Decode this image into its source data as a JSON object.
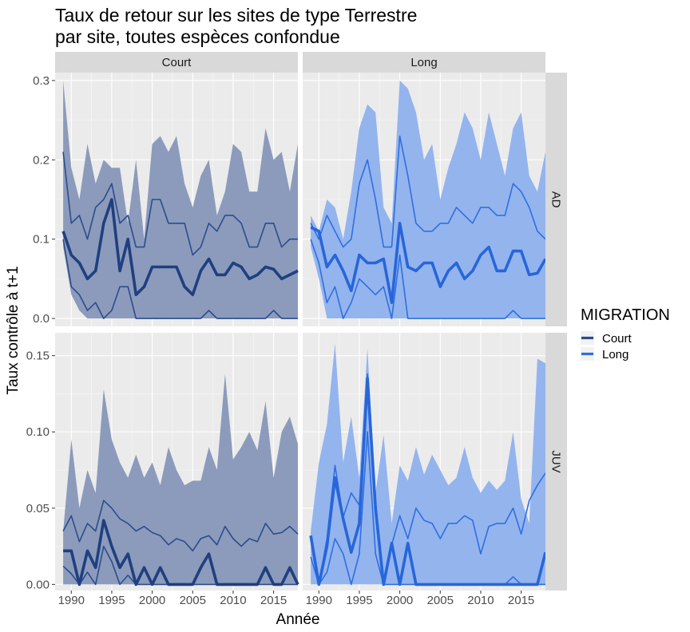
{
  "chart_data": {
    "type": "area",
    "title_line1": "Taux de retour sur les sites de type Terrestre",
    "title_line2": "par site, toutes espèces confondue",
    "xlabel": "Année",
    "ylabel": "Taux contrôle à t+1",
    "x_ticks": [
      1990,
      1995,
      2000,
      2005,
      2010,
      2015
    ],
    "x_range": [
      1988,
      2018
    ],
    "facet_cols": [
      "Court",
      "Long"
    ],
    "facet_rows": [
      "AD",
      "JUV"
    ],
    "rows": {
      "AD": {
        "ylim": [
          -0.01,
          0.31
        ],
        "y_ticks": [
          0.0,
          0.1,
          0.2,
          0.3
        ],
        "y_tick_labels": [
          "0.0",
          "0.1",
          "0.2",
          "0.3"
        ]
      },
      "JUV": {
        "ylim": [
          -0.004,
          0.165
        ],
        "y_ticks": [
          0.0,
          0.05,
          0.1,
          0.15
        ],
        "y_tick_labels": [
          "0.00",
          "0.05",
          "0.10",
          "0.15"
        ]
      }
    },
    "legend": {
      "title": "MIGRATION",
      "entries": [
        {
          "label": "Court",
          "color": "#2B4C8C"
        },
        {
          "label": "Long",
          "color": "#2E6FE0"
        }
      ],
      "position": "right"
    },
    "colors": {
      "Court_ribbon": "#8C9BBB",
      "Long_ribbon": "#94B4EE",
      "Court_line": "#2B4C8C",
      "Long_line": "#2E6FE0",
      "Court_mean": "#1F3F80",
      "Long_mean": "#2766D9",
      "panel_bg": "#EBEBEB",
      "strip_bg": "#D9D9D9"
    },
    "x": [
      1989,
      1990,
      1991,
      1992,
      1993,
      1994,
      1995,
      1996,
      1997,
      1998,
      1999,
      2000,
      2001,
      2002,
      2003,
      2004,
      2005,
      2006,
      2007,
      2008,
      2009,
      2010,
      2011,
      2012,
      2013,
      2014,
      2015,
      2016,
      2017,
      2018
    ],
    "panels": [
      {
        "col": "Court",
        "row": "AD",
        "ymax": [
          0.3,
          0.19,
          0.15,
          0.22,
          0.17,
          0.2,
          0.19,
          0.19,
          0.12,
          0.2,
          0.1,
          0.22,
          0.23,
          0.21,
          0.23,
          0.17,
          0.14,
          0.18,
          0.2,
          0.13,
          0.16,
          0.22,
          0.21,
          0.16,
          0.16,
          0.24,
          0.2,
          0.21,
          0.16,
          0.22
        ],
        "q_hi": [
          0.21,
          0.12,
          0.13,
          0.1,
          0.14,
          0.15,
          0.17,
          0.12,
          0.13,
          0.09,
          0.09,
          0.15,
          0.15,
          0.12,
          0.12,
          0.12,
          0.08,
          0.09,
          0.12,
          0.11,
          0.13,
          0.13,
          0.12,
          0.09,
          0.09,
          0.12,
          0.12,
          0.09,
          0.1,
          0.1
        ],
        "mean": [
          0.11,
          0.08,
          0.07,
          0.05,
          0.06,
          0.12,
          0.15,
          0.06,
          0.1,
          0.03,
          0.04,
          0.065,
          0.065,
          0.065,
          0.065,
          0.04,
          0.03,
          0.06,
          0.075,
          0.055,
          0.055,
          0.07,
          0.065,
          0.05,
          0.055,
          0.065,
          0.062,
          0.05,
          0.055,
          0.06
        ],
        "q_lo": [
          0.1,
          0.04,
          0.03,
          0.01,
          0.02,
          0.0,
          0.01,
          0.04,
          0.04,
          0.0,
          0.0,
          0.0,
          0.0,
          0.0,
          0.0,
          0.0,
          0.0,
          0.0,
          0.01,
          0.0,
          0.0,
          0.0,
          0.0,
          0.0,
          0.0,
          0.0,
          0.01,
          0.0,
          0.0,
          0.0
        ],
        "ymin": [
          0.09,
          0.03,
          0.01,
          0.0,
          0.0,
          0.0,
          0.0,
          0.0,
          0.0,
          0.0,
          0.0,
          0.0,
          0.0,
          0.0,
          0.0,
          0.0,
          0.0,
          0.0,
          0.0,
          0.0,
          0.0,
          0.0,
          0.0,
          0.0,
          0.0,
          0.0,
          0.0,
          0.0,
          0.0,
          0.0
        ]
      },
      {
        "col": "Long",
        "row": "AD",
        "ymax": [
          0.13,
          0.11,
          0.15,
          0.14,
          0.1,
          0.16,
          0.24,
          0.27,
          0.26,
          0.14,
          0.12,
          0.3,
          0.29,
          0.26,
          0.2,
          0.22,
          0.15,
          0.19,
          0.22,
          0.26,
          0.24,
          0.2,
          0.26,
          0.22,
          0.18,
          0.24,
          0.26,
          0.18,
          0.16,
          0.21
        ],
        "q_hi": [
          0.12,
          0.1,
          0.13,
          0.11,
          0.09,
          0.1,
          0.17,
          0.2,
          0.15,
          0.09,
          0.09,
          0.23,
          0.18,
          0.12,
          0.11,
          0.11,
          0.12,
          0.12,
          0.14,
          0.13,
          0.12,
          0.14,
          0.14,
          0.13,
          0.13,
          0.17,
          0.16,
          0.14,
          0.11,
          0.1
        ],
        "mean": [
          0.115,
          0.11,
          0.065,
          0.08,
          0.06,
          0.035,
          0.08,
          0.07,
          0.07,
          0.075,
          0.02,
          0.12,
          0.065,
          0.06,
          0.07,
          0.07,
          0.04,
          0.06,
          0.07,
          0.05,
          0.06,
          0.08,
          0.09,
          0.06,
          0.06,
          0.085,
          0.085,
          0.055,
          0.057,
          0.075
        ],
        "q_lo": [
          0.1,
          0.07,
          0.02,
          0.04,
          0.0,
          0.02,
          0.05,
          0.04,
          0.03,
          0.04,
          0.0,
          0.08,
          0.0,
          0.0,
          0.0,
          0.0,
          0.0,
          0.0,
          0.0,
          0.0,
          0.0,
          0.0,
          0.0,
          0.0,
          0.0,
          0.01,
          0.0,
          0.0,
          0.0,
          0.0
        ],
        "ymin": [
          0.09,
          0.05,
          0.0,
          0.0,
          0.0,
          0.0,
          0.0,
          0.0,
          0.0,
          0.0,
          0.0,
          0.0,
          0.0,
          0.0,
          0.0,
          0.0,
          0.0,
          0.0,
          0.0,
          0.0,
          0.0,
          0.0,
          0.0,
          0.0,
          0.0,
          0.0,
          0.0,
          0.0,
          0.0,
          0.0
        ]
      },
      {
        "col": "Court",
        "row": "JUV",
        "ymax": [
          0.035,
          0.095,
          0.05,
          0.075,
          0.06,
          0.128,
          0.095,
          0.08,
          0.07,
          0.085,
          0.07,
          0.08,
          0.065,
          0.09,
          0.075,
          0.065,
          0.068,
          0.068,
          0.09,
          0.075,
          0.138,
          0.082,
          0.09,
          0.1,
          0.088,
          0.12,
          0.07,
          0.1,
          0.11,
          0.092
        ],
        "q_hi": [
          0.035,
          0.045,
          0.028,
          0.04,
          0.035,
          0.055,
          0.05,
          0.043,
          0.04,
          0.035,
          0.038,
          0.034,
          0.032,
          0.026,
          0.03,
          0.028,
          0.022,
          0.03,
          0.032,
          0.026,
          0.038,
          0.03,
          0.025,
          0.03,
          0.028,
          0.04,
          0.033,
          0.034,
          0.038,
          0.033
        ],
        "mean": [
          0.022,
          0.022,
          0.0,
          0.022,
          0.011,
          0.042,
          0.025,
          0.011,
          0.02,
          0.0,
          0.011,
          0.0,
          0.011,
          0.0,
          0.0,
          0.0,
          0.0,
          0.011,
          0.02,
          0.0,
          0.0,
          0.0,
          0.0,
          0.0,
          0.0,
          0.011,
          0.0,
          0.0,
          0.011,
          0.0
        ],
        "q_lo": [
          0.012,
          0.007,
          0.0,
          0.008,
          0.0,
          0.025,
          0.015,
          0.0,
          0.006,
          0.0,
          0.0,
          0.0,
          0.0,
          0.0,
          0.0,
          0.0,
          0.0,
          0.0,
          0.0,
          0.0,
          0.0,
          0.0,
          0.0,
          0.0,
          0.0,
          0.0,
          0.0,
          0.0,
          0.0,
          0.0
        ],
        "ymin": [
          0.0,
          0.0,
          0.0,
          0.0,
          0.0,
          0.0,
          0.0,
          0.0,
          0.0,
          0.0,
          0.0,
          0.0,
          0.0,
          0.0,
          0.0,
          0.0,
          0.0,
          0.0,
          0.0,
          0.0,
          0.0,
          0.0,
          0.0,
          0.0,
          0.0,
          0.0,
          0.0,
          0.0,
          0.0,
          0.0
        ]
      },
      {
        "col": "Long",
        "row": "JUV",
        "ymax": [
          0.035,
          0.08,
          0.105,
          0.158,
          0.08,
          0.11,
          0.07,
          0.155,
          0.06,
          0.098,
          0.04,
          0.078,
          0.068,
          0.09,
          0.072,
          0.085,
          0.075,
          0.065,
          0.07,
          0.09,
          0.07,
          0.06,
          0.068,
          0.062,
          0.068,
          0.1,
          0.056,
          0.04,
          0.148,
          0.145
        ],
        "q_hi": [
          0.032,
          0.0,
          0.03,
          0.078,
          0.044,
          0.06,
          0.052,
          0.138,
          0.05,
          0.0,
          0.026,
          0.045,
          0.03,
          0.05,
          0.042,
          0.04,
          0.03,
          0.04,
          0.04,
          0.045,
          0.042,
          0.02,
          0.038,
          0.04,
          0.04,
          0.05,
          0.033,
          0.055,
          0.065,
          0.073
        ],
        "mean": [
          0.032,
          0.0,
          0.025,
          0.07,
          0.043,
          0.021,
          0.04,
          0.135,
          0.05,
          0.0,
          0.027,
          0.0,
          0.027,
          0.0,
          0.0,
          0.0,
          0.0,
          0.0,
          0.0,
          0.0,
          0.0,
          0.0,
          0.0,
          0.0,
          0.0,
          0.0,
          0.0,
          0.0,
          0.0,
          0.021
        ],
        "q_lo": [
          0.018,
          0.0,
          0.008,
          0.03,
          0.02,
          0.0,
          0.02,
          0.1,
          0.02,
          0.0,
          0.0,
          0.0,
          0.0,
          0.0,
          0.0,
          0.0,
          0.0,
          0.0,
          0.0,
          0.0,
          0.0,
          0.0,
          0.0,
          0.0,
          0.0,
          0.005,
          0.0,
          0.0,
          0.0,
          0.0
        ],
        "ymin": [
          0.0,
          0.0,
          0.0,
          0.0,
          0.0,
          0.0,
          0.0,
          0.0,
          0.0,
          0.0,
          0.0,
          0.0,
          0.0,
          0.0,
          0.0,
          0.0,
          0.0,
          0.0,
          0.0,
          0.0,
          0.0,
          0.0,
          0.0,
          0.0,
          0.0,
          0.0,
          0.0,
          0.0,
          0.0,
          0.0
        ]
      }
    ]
  }
}
